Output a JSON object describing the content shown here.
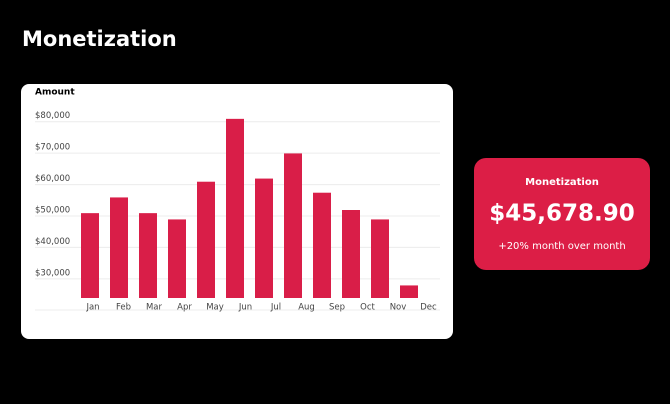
{
  "header": {
    "title": "Monetization"
  },
  "chart_data": {
    "type": "bar",
    "y_label": "Amount",
    "categories": [
      "Jan",
      "Feb",
      "Mar",
      "Apr",
      "May",
      "Jun",
      "Jul",
      "Aug",
      "Sep",
      "Oct",
      "Nov",
      "Dec"
    ],
    "values": [
      49000,
      54000,
      49000,
      47000,
      59000,
      79000,
      60000,
      68000,
      55500,
      50000,
      47000,
      26000
    ],
    "color": "#d91e48",
    "ylim": [
      22000,
      85000
    ],
    "yticks": [
      {
        "value": 30000,
        "label": "$30,000"
      },
      {
        "value": 40000,
        "label": "$40,000"
      },
      {
        "value": 50000,
        "label": "$50,000"
      },
      {
        "value": 60000,
        "label": "$60,000"
      },
      {
        "value": 70000,
        "label": "$70,000"
      },
      {
        "value": 80000,
        "label": "$80,000"
      }
    ],
    "grid": true
  },
  "card": {
    "title": "Monetization",
    "value": "$45,678.90",
    "note": "+20% month over month"
  }
}
